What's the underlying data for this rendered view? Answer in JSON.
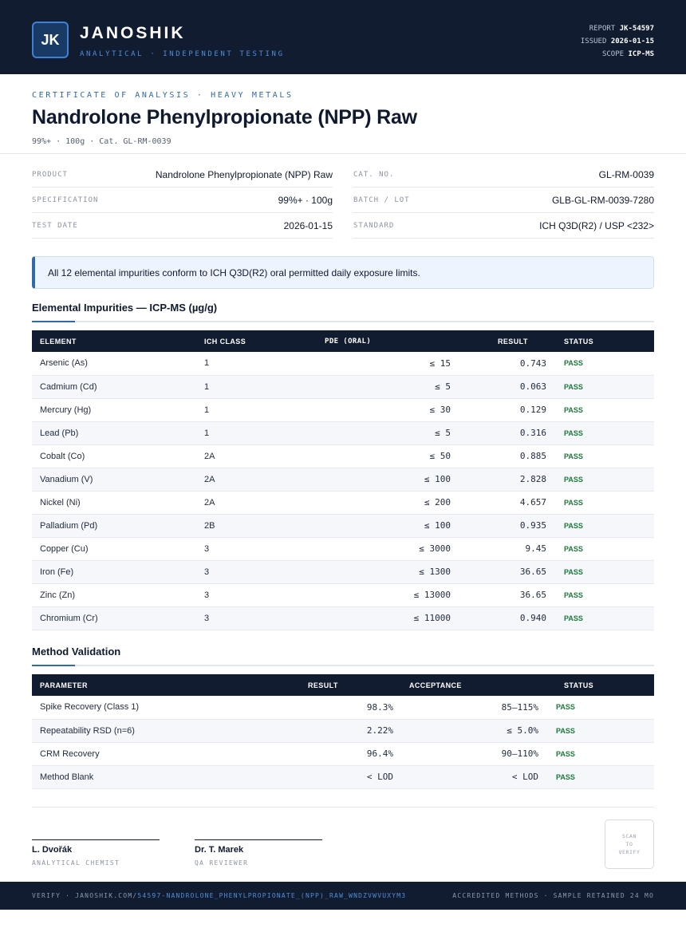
{
  "header": {
    "logo": "JK",
    "brand": "JANOSHIK",
    "tagline": "ANALYTICAL · INDEPENDENT TESTING",
    "report_label": "REPORT",
    "report_value": "JK-54597",
    "issued_label": "ISSUED",
    "issued_value": "2026-01-15",
    "scope_label": "SCOPE",
    "scope_value": "ICP-MS"
  },
  "title_block": {
    "cert_label": "CERTIFICATE OF ANALYSIS · HEAVY METALS",
    "title": "Nandrolone Phenylpropionate (NPP) Raw",
    "subtitle": "99%+ · 100g  ·  Cat. GL-RM-0039"
  },
  "info_left": [
    {
      "key": "PRODUCT",
      "value": "Nandrolone Phenylpropionate (NPP) Raw"
    },
    {
      "key": "SPECIFICATION",
      "value": "99%+ · 100g"
    },
    {
      "key": "TEST DATE",
      "value": "2026-01-15"
    }
  ],
  "info_right": [
    {
      "key": "CAT. NO.",
      "value": "GL-RM-0039"
    },
    {
      "key": "BATCH / LOT",
      "value": "GLB-GL-RM-0039-7280"
    },
    {
      "key": "STANDARD",
      "value": "ICH Q3D(R2) / USP <232>"
    }
  ],
  "banner": "All 12 elemental impurities conform to ICH Q3D(R2) oral permitted daily exposure limits.",
  "impurities": {
    "title": "Elemental Impurities — ICP-MS (µg/g)",
    "headers": [
      "ELEMENT",
      "ICH CLASS",
      "PDE (ORAL)",
      "RESULT",
      "STATUS"
    ],
    "rows": [
      {
        "element": "Arsenic (As)",
        "class": "1",
        "pde": "≤ 15",
        "result": "0.743",
        "status": "PASS"
      },
      {
        "element": "Cadmium (Cd)",
        "class": "1",
        "pde": "≤ 5",
        "result": "0.063",
        "status": "PASS"
      },
      {
        "element": "Mercury (Hg)",
        "class": "1",
        "pde": "≤ 30",
        "result": "0.129",
        "status": "PASS"
      },
      {
        "element": "Lead (Pb)",
        "class": "1",
        "pde": "≤ 5",
        "result": "0.316",
        "status": "PASS"
      },
      {
        "element": "Cobalt (Co)",
        "class": "2A",
        "pde": "≤ 50",
        "result": "0.885",
        "status": "PASS"
      },
      {
        "element": "Vanadium (V)",
        "class": "2A",
        "pde": "≤ 100",
        "result": "2.828",
        "status": "PASS"
      },
      {
        "element": "Nickel (Ni)",
        "class": "2A",
        "pde": "≤ 200",
        "result": "4.657",
        "status": "PASS"
      },
      {
        "element": "Palladium (Pd)",
        "class": "2B",
        "pde": "≤ 100",
        "result": "0.935",
        "status": "PASS"
      },
      {
        "element": "Copper (Cu)",
        "class": "3",
        "pde": "≤ 3000",
        "result": "9.45",
        "status": "PASS"
      },
      {
        "element": "Iron (Fe)",
        "class": "3",
        "pde": "≤ 1300",
        "result": "36.65",
        "status": "PASS"
      },
      {
        "element": "Zinc (Zn)",
        "class": "3",
        "pde": "≤ 13000",
        "result": "36.65",
        "status": "PASS"
      },
      {
        "element": "Chromium (Cr)",
        "class": "3",
        "pde": "≤ 11000",
        "result": "0.940",
        "status": "PASS"
      }
    ]
  },
  "validation": {
    "title": "Method Validation",
    "headers": [
      "PARAMETER",
      "RESULT",
      "ACCEPTANCE",
      "STATUS"
    ],
    "rows": [
      {
        "parameter": "Spike Recovery (Class 1)",
        "result": "98.3%",
        "acceptance": "85–115%",
        "status": "PASS"
      },
      {
        "parameter": "Repeatability RSD (n=6)",
        "result": "2.22%",
        "acceptance": "≤ 5.0%",
        "status": "PASS"
      },
      {
        "parameter": "CRM Recovery",
        "result": "96.4%",
        "acceptance": "90–110%",
        "status": "PASS"
      },
      {
        "parameter": "Method Blank",
        "result": "< LOD",
        "acceptance": "< LOD",
        "status": "PASS"
      }
    ]
  },
  "signatures": [
    {
      "name": "L. Dvořák",
      "role": "ANALYTICAL CHEMIST"
    },
    {
      "name": "Dr. T. Marek",
      "role": "QA REVIEWER"
    }
  ],
  "qr": {
    "line1": "SCAN",
    "line2": "TO",
    "line3": "VERIFY"
  },
  "footer": {
    "verify_prefix": "VERIFY · JANOSHIK.COM/",
    "verify_link": "54597-NANDROLONE_PHENYLPROPIONATE_(NPP)_RAW_WNDZVWVUXYM3",
    "right": "ACCREDITED METHODS · SAMPLE RETAINED 24 MO"
  },
  "colors": {
    "navy": "#121c30",
    "accent": "#2f6aab",
    "pass": "#1a7a3a"
  }
}
